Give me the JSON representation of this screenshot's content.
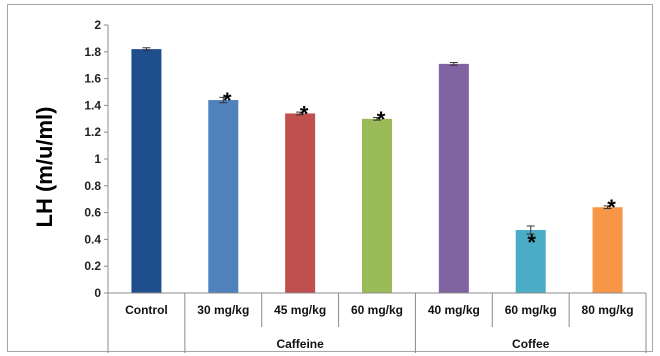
{
  "chart_data": {
    "type": "bar",
    "ylabel": "LH (m/u/ml)",
    "xlabel": "",
    "ylim": [
      0,
      2
    ],
    "ytick_step": 0.2,
    "yticks": [
      "0",
      "0.2",
      "0.4",
      "0.6",
      "0.8",
      "1",
      "1.2",
      "1.4",
      "1.6",
      "1.8",
      "2"
    ],
    "grid": false,
    "legend": "none",
    "categories": [
      "Control",
      "30 mg/kg",
      "45 mg/kg",
      "60 mg/kg",
      "40 mg/kg",
      "60 mg/kg",
      "80 mg/kg"
    ],
    "values": [
      1.82,
      1.44,
      1.34,
      1.3,
      1.71,
      0.47,
      0.64
    ],
    "errors": [
      0.01,
      0.02,
      0.01,
      0.01,
      0.01,
      0.03,
      0.01
    ],
    "colors": [
      "#1f4e8c",
      "#4f81bd",
      "#c0504d",
      "#9bbb59",
      "#8064a2",
      "#4bacc6",
      "#f79646"
    ],
    "significance_marker": "*",
    "significant": [
      false,
      true,
      true,
      true,
      false,
      true,
      true
    ],
    "groups": [
      {
        "label": "",
        "start": 0,
        "end": 0
      },
      {
        "label": "Caffeine",
        "start": 1,
        "end": 3
      },
      {
        "label": "Coffee",
        "start": 4,
        "end": 6
      }
    ]
  }
}
